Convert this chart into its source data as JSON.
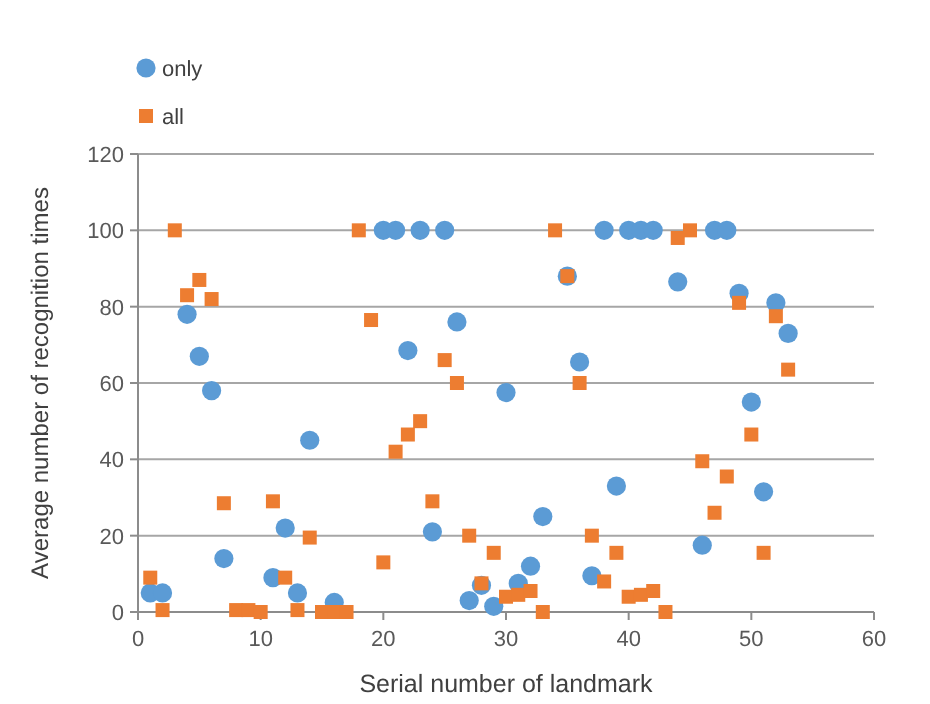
{
  "chart_data": {
    "type": "scatter",
    "xlabel": "Serial number of landmark",
    "ylabel": "Average number of recognition times",
    "xlim": [
      0,
      60
    ],
    "xticks": [
      0,
      10,
      20,
      30,
      40,
      50,
      60
    ],
    "ylim": [
      0,
      120
    ],
    "yticks": [
      0,
      20,
      40,
      60,
      80,
      100,
      120
    ],
    "grid": "y",
    "legend": "top left",
    "series": [
      {
        "name": "only",
        "color": "#5b9bd5",
        "marker": "circle",
        "x": [
          1,
          2,
          4,
          5,
          6,
          7,
          11,
          12,
          13,
          14,
          16,
          20,
          21,
          22,
          23,
          24,
          25,
          26,
          27,
          28,
          29,
          30,
          31,
          32,
          33,
          35,
          36,
          37,
          38,
          39,
          40,
          41,
          42,
          44,
          46,
          47,
          48,
          49,
          50,
          51,
          52,
          53
        ],
        "values": [
          5,
          5,
          78,
          67,
          58,
          14,
          9,
          22,
          5,
          45,
          2.5,
          100,
          100,
          68.5,
          100,
          21,
          100,
          76,
          3,
          7,
          1.5,
          57.5,
          7.5,
          12,
          25,
          88,
          65.5,
          9.5,
          100,
          33,
          100,
          100,
          100,
          86.5,
          17.5,
          100,
          100,
          83.5,
          55,
          31.5,
          81,
          73
        ]
      },
      {
        "name": "all",
        "color": "#ed7d31",
        "marker": "square",
        "x": [
          1,
          2,
          3,
          4,
          5,
          6,
          7,
          8,
          9,
          10,
          11,
          12,
          13,
          14,
          15,
          16,
          17,
          18,
          19,
          20,
          21,
          22,
          23,
          24,
          25,
          26,
          27,
          28,
          29,
          30,
          31,
          32,
          33,
          34,
          35,
          36,
          37,
          38,
          39,
          40,
          41,
          42,
          43,
          44,
          45,
          46,
          47,
          48,
          49,
          50,
          51,
          52,
          53
        ],
        "values": [
          9,
          0.5,
          100,
          83,
          87,
          82,
          28.5,
          0.5,
          0.5,
          0,
          29,
          9,
          0.5,
          19.5,
          0,
          0,
          0,
          100,
          76.5,
          13,
          42,
          46.5,
          50,
          29,
          66,
          60,
          20,
          7.5,
          15.5,
          4,
          4.5,
          5.5,
          0,
          100,
          88,
          60,
          20,
          8,
          15.5,
          4,
          4.5,
          5.5,
          0,
          98,
          100,
          39.5,
          26,
          35.5,
          81,
          46.5,
          15.5,
          77.5,
          63.5
        ]
      }
    ]
  }
}
